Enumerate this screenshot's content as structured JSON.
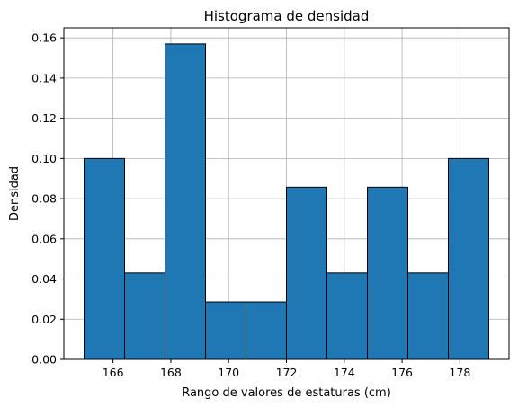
{
  "chart_data": {
    "type": "bar",
    "title": "Histograma de densidad",
    "xlabel": "Rango de valores de estaturas (cm)",
    "ylabel": "Densidad",
    "bin_edges": [
      165.0,
      166.4,
      167.8,
      169.2,
      170.6,
      172.0,
      173.4,
      174.8,
      176.2,
      177.6,
      179.0
    ],
    "values": [
      0.1,
      0.043,
      0.157,
      0.0286,
      0.0286,
      0.0857,
      0.043,
      0.0857,
      0.043,
      0.1
    ],
    "xlim": [
      164.3,
      179.7
    ],
    "ylim": [
      0,
      0.165
    ],
    "xticks": [
      166,
      168,
      170,
      172,
      174,
      176,
      178
    ],
    "yticks": [
      0.0,
      0.02,
      0.04,
      0.06,
      0.08,
      0.1,
      0.12,
      0.14,
      0.16
    ],
    "xtick_labels": [
      "166",
      "168",
      "170",
      "172",
      "174",
      "176",
      "178"
    ],
    "ytick_labels": [
      "0.00",
      "0.02",
      "0.04",
      "0.06",
      "0.08",
      "0.10",
      "0.12",
      "0.14",
      "0.16"
    ],
    "grid": true,
    "colors": {
      "bar": "#1f77b4",
      "edge": "#000000",
      "grid": "#b0b0b0"
    }
  }
}
